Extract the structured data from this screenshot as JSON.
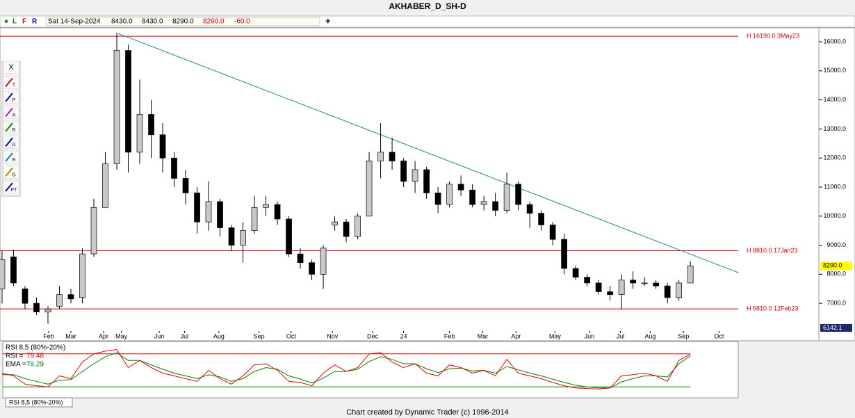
{
  "title": "AKHABER_D_SH-D",
  "header": {
    "flags": [
      "●",
      "L",
      "F",
      "R"
    ],
    "date": "Sat 14-Sep-2024",
    "open": "8430.0",
    "high": "8430.0",
    "low": "8290.0",
    "close": "8290.0",
    "change": "-60.0",
    "plus": "+"
  },
  "tools": [
    "X",
    "T",
    "P",
    "A",
    "B",
    "R",
    "R",
    "G",
    "PT"
  ],
  "tab": "RSI 8,5 (80%-20%)",
  "footer": "Chart created by Dynamic Trader  (c)  1996-2014",
  "chart_data": [
    {
      "type": "candlestick",
      "up_color": "#c8c8c8",
      "down_color": "#000000",
      "xlim": [
        -0.18,
        71.2
      ],
      "ylim": [
        6142.1,
        16480
      ],
      "yticks": [
        {
          "value": 7000,
          "label": "7000.0"
        },
        {
          "value": 8000,
          "label": "8000.0"
        },
        {
          "value": 9000,
          "label": "9000.0"
        },
        {
          "value": 10000,
          "label": "10000.0"
        },
        {
          "value": 11000,
          "label": "11000.0"
        },
        {
          "value": 12000,
          "label": "12000.0"
        },
        {
          "value": 13000,
          "label": "13000.0"
        },
        {
          "value": 14000,
          "label": "14000.0"
        },
        {
          "value": 15000,
          "label": "15000.0"
        },
        {
          "value": 16000,
          "label": "16000.0"
        }
      ],
      "xticks": [
        {
          "value": 4.06,
          "label": "Feb"
        },
        {
          "value": 6,
          "label": "Mar"
        },
        {
          "value": 8.85,
          "label": "Apr"
        },
        {
          "value": 10.4,
          "label": "May"
        },
        {
          "value": 13.7,
          "label": "Jun"
        },
        {
          "value": 15.9,
          "label": "Jul"
        },
        {
          "value": 18.9,
          "label": "Aug"
        },
        {
          "value": 22.4,
          "label": "Sep"
        },
        {
          "value": 25.2,
          "label": "Oct"
        },
        {
          "value": 28.8,
          "label": "Nov"
        },
        {
          "value": 32.3,
          "label": "Dec"
        },
        {
          "value": 35,
          "label": "24"
        },
        {
          "value": 39,
          "label": "Feb"
        },
        {
          "value": 41.9,
          "label": "Mar"
        },
        {
          "value": 44.8,
          "label": "Apr"
        },
        {
          "value": 48.2,
          "label": "May"
        },
        {
          "value": 51.2,
          "label": "Jun"
        },
        {
          "value": 53.9,
          "label": "Jul"
        },
        {
          "value": 56.5,
          "label": "Aug"
        },
        {
          "value": 59.4,
          "label": "Sep"
        },
        {
          "value": 62.5,
          "label": "Oct"
        }
      ],
      "open": [
        7500,
        8600,
        7500,
        7000,
        6700,
        6900,
        7300,
        7200,
        8700,
        10300,
        11800,
        15700,
        12200,
        13500,
        12800,
        12000,
        11300,
        10800,
        9800,
        10500,
        9600,
        9000,
        9500,
        10300,
        10400,
        9900,
        8700,
        8400,
        8000,
        9700,
        9800,
        9300,
        10000,
        11900,
        12200,
        11900,
        11200,
        11600,
        10800,
        10400,
        11100,
        10900,
        10400,
        10500,
        10200,
        11100,
        10400,
        10100,
        9700,
        9200,
        8200,
        7900,
        7700,
        7400,
        7300,
        7800,
        7700,
        7700,
        7600,
        7200,
        7700
      ],
      "high": [
        8800,
        8850,
        7600,
        7200,
        6900,
        7600,
        7500,
        8900,
        10600,
        12200,
        16300,
        15900,
        14700,
        14000,
        13200,
        12200,
        11600,
        11000,
        11200,
        10600,
        9700,
        9800,
        10700,
        10700,
        10500,
        10000,
        8900,
        8500,
        9000,
        10000,
        9900,
        10100,
        12200,
        13200,
        12700,
        12000,
        11900,
        11700,
        11000,
        11200,
        11400,
        11100,
        10700,
        10800,
        11500,
        11200,
        10500,
        10200,
        9800,
        9400,
        8300,
        8000,
        7800,
        7600,
        8000,
        8100,
        7900,
        7800,
        7700,
        7800,
        8450
      ],
      "low": [
        7000,
        7600,
        6800,
        6600,
        6300,
        6800,
        7000,
        7000,
        8600,
        10300,
        11600,
        11500,
        11800,
        12000,
        11500,
        11000,
        10400,
        9400,
        9500,
        9300,
        8800,
        8400,
        9400,
        10000,
        9700,
        8600,
        8200,
        7800,
        7500,
        9500,
        9100,
        9200,
        10000,
        11300,
        11600,
        11000,
        10800,
        10600,
        10100,
        10300,
        10700,
        10300,
        10200,
        10000,
        10100,
        10200,
        9600,
        9500,
        9000,
        8000,
        7800,
        7600,
        7300,
        7100,
        6800,
        7500,
        7600,
        7500,
        7000,
        7100,
        7700
      ],
      "close": [
        8500,
        7700,
        7000,
        6700,
        6800,
        7300,
        7150,
        8700,
        10300,
        11800,
        15700,
        12200,
        13500,
        12800,
        12000,
        11300,
        10800,
        9800,
        10500,
        9600,
        9000,
        9500,
        10300,
        10400,
        9900,
        8700,
        8400,
        8000,
        8900,
        9800,
        9300,
        10000,
        11900,
        12200,
        11900,
        11200,
        11600,
        10800,
        10400,
        11100,
        10900,
        10400,
        10500,
        10200,
        11100,
        10400,
        10100,
        9700,
        9200,
        8200,
        7900,
        7700,
        7400,
        7300,
        7800,
        7700,
        7700,
        7600,
        7200,
        7700,
        8290
      ],
      "hlines": [
        {
          "value": 16190,
          "label": "H 16190.0 3May23",
          "color": "#d00000"
        },
        {
          "value": 8810,
          "label": "H 8810.0 17Jan23",
          "color": "#d00000"
        },
        {
          "value": 6810,
          "label": "H 6810.0 12Feb23",
          "color": "#d00000"
        }
      ],
      "trendline": {
        "x": [
          10.1,
          64.2
        ],
        "y": [
          16287,
          8053
        ],
        "color": "#1a8a9a"
      },
      "last_price": {
        "value": 8290,
        "label": "8290.0"
      }
    },
    {
      "type": "line",
      "title": "RSI 8,5 (80%-20%)",
      "ylim": [
        0,
        100
      ],
      "hlines": [
        {
          "value": 80,
          "color": "#d00000"
        },
        {
          "value": 20,
          "color": "#008000"
        }
      ],
      "series": [
        {
          "name": "RSI =",
          "color": "#e00000",
          "values": [
            45,
            40,
            25,
            22,
            20,
            40,
            35,
            65,
            80,
            85,
            88,
            55,
            68,
            55,
            45,
            40,
            35,
            30,
            50,
            35,
            25,
            40,
            60,
            62,
            50,
            30,
            28,
            22,
            45,
            60,
            48,
            55,
            80,
            82,
            65,
            55,
            62,
            45,
            40,
            60,
            55,
            45,
            50,
            40,
            70,
            45,
            40,
            35,
            28,
            22,
            18,
            17,
            16,
            18,
            40,
            42,
            45,
            40,
            30,
            68,
            79.48
          ]
        },
        {
          "name": "EMA =",
          "color": "#008000",
          "values": [
            42,
            42,
            35,
            30,
            25,
            32,
            33,
            48,
            62,
            75,
            82,
            68,
            68,
            60,
            52,
            45,
            40,
            35,
            42,
            38,
            30,
            35,
            48,
            55,
            52,
            40,
            34,
            27,
            36,
            48,
            48,
            52,
            66,
            75,
            70,
            62,
            62,
            53,
            46,
            53,
            54,
            49,
            50,
            45,
            57,
            51,
            45,
            40,
            34,
            28,
            23,
            20,
            18,
            18,
            29,
            35,
            40,
            40,
            38,
            62,
            76.29
          ]
        }
      ]
    }
  ]
}
